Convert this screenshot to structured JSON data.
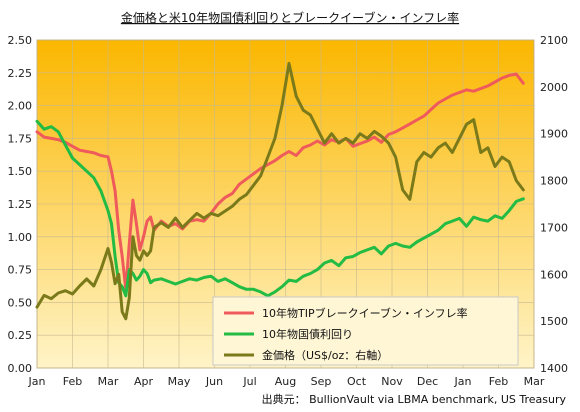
{
  "chart_data": {
    "type": "line",
    "title": "金価格と米10年物国債利回りとブレークイーブン・インフレ率",
    "source": "出典元： BullionVault via LBMA benchmark, US Treasury",
    "x_tick_labels": [
      "Jan",
      "Feb",
      "Mar",
      "Apr",
      "May",
      "Jun",
      "Jul",
      "Aug",
      "Sep",
      "Oct",
      "Nov",
      "Dec",
      "Jan",
      "Feb",
      "Mar"
    ],
    "y_left": {
      "min": 0.0,
      "max": 2.5,
      "ticks": [
        "0.00",
        "0.25",
        "0.50",
        "0.75",
        "1.00",
        "1.25",
        "1.50",
        "1.75",
        "2.00",
        "2.25",
        "2.50"
      ]
    },
    "y_right": {
      "min": 1400,
      "max": 2100,
      "ticks": [
        "1400",
        "1500",
        "1600",
        "1700",
        "1800",
        "1900",
        "2000",
        "2100"
      ]
    },
    "grid": true,
    "legend_position": "bottom-right",
    "background_gradient": [
      "#fbb700",
      "#fff4c8"
    ],
    "series": [
      {
        "name": "10年物TIPブレークイーブン・インフレ率",
        "axis": "left",
        "color": "#ef5b5b",
        "x": [
          0,
          0.2,
          0.4,
          0.6,
          0.8,
          1.0,
          1.2,
          1.4,
          1.6,
          1.8,
          2.0,
          2.1,
          2.2,
          2.3,
          2.4,
          2.5,
          2.6,
          2.7,
          2.8,
          2.9,
          3.0,
          3.1,
          3.2,
          3.3,
          3.5,
          3.7,
          3.9,
          4.1,
          4.3,
          4.5,
          4.7,
          4.9,
          5.1,
          5.3,
          5.5,
          5.7,
          5.9,
          6.1,
          6.3,
          6.5,
          6.7,
          6.9,
          7.1,
          7.3,
          7.5,
          7.7,
          7.9,
          8.1,
          8.3,
          8.5,
          8.7,
          8.9,
          9.1,
          9.3,
          9.5,
          9.7,
          9.9,
          10.1,
          10.3,
          10.5,
          10.7,
          10.9,
          11.1,
          11.3,
          11.5,
          11.7,
          11.9,
          12.1,
          12.3,
          12.5,
          12.7,
          12.9,
          13.1,
          13.3,
          13.5,
          13.7
        ],
        "y": [
          1.8,
          1.76,
          1.75,
          1.74,
          1.72,
          1.69,
          1.66,
          1.65,
          1.64,
          1.62,
          1.61,
          1.5,
          1.35,
          1.05,
          0.85,
          0.6,
          0.95,
          1.28,
          1.1,
          0.9,
          1.0,
          1.12,
          1.15,
          1.05,
          1.12,
          1.08,
          1.1,
          1.06,
          1.12,
          1.13,
          1.12,
          1.18,
          1.25,
          1.3,
          1.33,
          1.4,
          1.44,
          1.48,
          1.52,
          1.55,
          1.58,
          1.62,
          1.65,
          1.62,
          1.68,
          1.7,
          1.73,
          1.7,
          1.74,
          1.72,
          1.75,
          1.69,
          1.71,
          1.73,
          1.76,
          1.72,
          1.78,
          1.8,
          1.83,
          1.86,
          1.89,
          1.92,
          1.97,
          2.02,
          2.05,
          2.08,
          2.1,
          2.12,
          2.11,
          2.13,
          2.15,
          2.18,
          2.21,
          2.23,
          2.24,
          2.17
        ]
      },
      {
        "name": "10年物国債利回り",
        "axis": "left",
        "color": "#22bb44",
        "x": [
          0,
          0.2,
          0.4,
          0.6,
          0.8,
          1.0,
          1.2,
          1.4,
          1.6,
          1.8,
          2.0,
          2.1,
          2.2,
          2.3,
          2.4,
          2.5,
          2.6,
          2.7,
          2.8,
          2.9,
          3.0,
          3.1,
          3.2,
          3.3,
          3.5,
          3.7,
          3.9,
          4.1,
          4.3,
          4.5,
          4.7,
          4.9,
          5.1,
          5.3,
          5.5,
          5.7,
          5.9,
          6.1,
          6.3,
          6.5,
          6.7,
          6.9,
          7.1,
          7.3,
          7.5,
          7.7,
          7.9,
          8.1,
          8.3,
          8.5,
          8.7,
          8.9,
          9.1,
          9.3,
          9.5,
          9.7,
          9.9,
          10.1,
          10.3,
          10.5,
          10.7,
          10.9,
          11.1,
          11.3,
          11.5,
          11.7,
          11.9,
          12.1,
          12.3,
          12.5,
          12.7,
          12.9,
          13.1,
          13.3,
          13.5,
          13.7
        ],
        "y": [
          1.88,
          1.82,
          1.84,
          1.8,
          1.7,
          1.6,
          1.55,
          1.5,
          1.45,
          1.35,
          1.2,
          1.1,
          0.85,
          0.65,
          0.62,
          0.55,
          0.75,
          0.72,
          0.67,
          0.7,
          0.75,
          0.72,
          0.65,
          0.67,
          0.68,
          0.66,
          0.64,
          0.66,
          0.68,
          0.67,
          0.69,
          0.7,
          0.66,
          0.68,
          0.65,
          0.62,
          0.6,
          0.6,
          0.58,
          0.55,
          0.58,
          0.62,
          0.67,
          0.66,
          0.7,
          0.72,
          0.75,
          0.8,
          0.82,
          0.78,
          0.84,
          0.85,
          0.88,
          0.9,
          0.92,
          0.87,
          0.93,
          0.95,
          0.93,
          0.92,
          0.96,
          0.99,
          1.02,
          1.05,
          1.1,
          1.12,
          1.14,
          1.08,
          1.15,
          1.13,
          1.12,
          1.16,
          1.14,
          1.2,
          1.27,
          1.29
        ]
      },
      {
        "name": "金価格（US$/oz：右軸）",
        "axis": "right",
        "color": "#7a7a1a",
        "x": [
          0,
          0.2,
          0.4,
          0.6,
          0.8,
          1.0,
          1.2,
          1.4,
          1.6,
          1.8,
          2.0,
          2.1,
          2.2,
          2.3,
          2.4,
          2.5,
          2.6,
          2.7,
          2.8,
          2.9,
          3.0,
          3.1,
          3.2,
          3.3,
          3.5,
          3.7,
          3.9,
          4.1,
          4.3,
          4.5,
          4.7,
          4.9,
          5.1,
          5.3,
          5.5,
          5.7,
          5.9,
          6.1,
          6.3,
          6.5,
          6.7,
          6.9,
          7.1,
          7.3,
          7.5,
          7.7,
          7.9,
          8.1,
          8.3,
          8.5,
          8.7,
          8.9,
          9.1,
          9.3,
          9.5,
          9.7,
          9.9,
          10.1,
          10.3,
          10.5,
          10.7,
          10.9,
          11.1,
          11.3,
          11.5,
          11.7,
          11.9,
          12.1,
          12.3,
          12.5,
          12.7,
          12.9,
          13.1,
          13.3,
          13.5,
          13.7
        ],
        "y": [
          1530,
          1555,
          1548,
          1560,
          1565,
          1558,
          1575,
          1590,
          1575,
          1610,
          1655,
          1625,
          1580,
          1600,
          1520,
          1505,
          1550,
          1680,
          1640,
          1630,
          1650,
          1640,
          1650,
          1700,
          1710,
          1700,
          1720,
          1700,
          1715,
          1730,
          1720,
          1730,
          1725,
          1735,
          1745,
          1760,
          1770,
          1790,
          1810,
          1850,
          1890,
          1960,
          2050,
          1980,
          1950,
          1940,
          1910,
          1880,
          1900,
          1880,
          1890,
          1880,
          1900,
          1890,
          1905,
          1895,
          1880,
          1850,
          1780,
          1760,
          1840,
          1860,
          1850,
          1870,
          1880,
          1860,
          1890,
          1920,
          1930,
          1860,
          1870,
          1830,
          1850,
          1840,
          1800,
          1780
        ]
      }
    ]
  }
}
